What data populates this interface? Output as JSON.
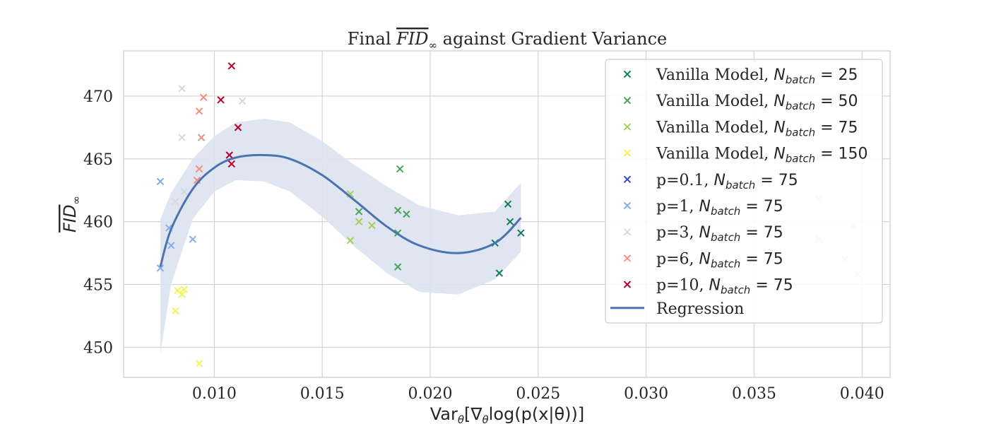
{
  "chart_data": {
    "type": "scatter",
    "title": {
      "prefix": "Final ",
      "symbol": "FID",
      "subscript": "∞",
      "suffix": " against Gradient Variance"
    },
    "xlabel": {
      "prefix": "Var",
      "sub1": "θ",
      "mid": "[∇",
      "sub2": "θ",
      "suffix": "log(p(x|θ))]"
    },
    "ylabel": {
      "symbol": "FID",
      "subscript": "∞"
    },
    "xlim": [
      0.0058,
      0.0413
    ],
    "ylim": [
      447.6,
      473.6
    ],
    "xticks": [
      "0.010",
      "0.015",
      "0.020",
      "0.025",
      "0.030",
      "0.035",
      "0.040"
    ],
    "yticks": [
      "450",
      "455",
      "460",
      "465",
      "470"
    ],
    "grid": true,
    "legend_position": "upper right",
    "series": [
      {
        "prefix": "Vanilla Model, ",
        "nbatch": "25",
        "color": "#0f7e5c",
        "points": [
          [
            0.0236,
            461.4
          ],
          [
            0.0237,
            460.0
          ],
          [
            0.0242,
            459.1
          ],
          [
            0.023,
            458.3
          ],
          [
            0.0232,
            455.9
          ]
        ]
      },
      {
        "prefix": "Vanilla Model, ",
        "nbatch": "50",
        "color": "#49a45a",
        "points": [
          [
            0.0186,
            464.2
          ],
          [
            0.0185,
            460.9
          ],
          [
            0.0189,
            460.6
          ],
          [
            0.0185,
            459.1
          ],
          [
            0.0185,
            456.4
          ],
          [
            0.0167,
            460.8
          ]
        ]
      },
      {
        "prefix": "Vanilla Model, ",
        "nbatch": "75",
        "color": "#a4d05c",
        "points": [
          [
            0.0163,
            462.2
          ],
          [
            0.0167,
            460.0
          ],
          [
            0.0173,
            459.7
          ],
          [
            0.0163,
            458.5
          ]
        ]
      },
      {
        "prefix": "Vanilla Model, ",
        "nbatch": "150",
        "color": "#f2f25a",
        "points": [
          [
            0.0083,
            454.5
          ],
          [
            0.0086,
            454.6
          ],
          [
            0.0085,
            454.2
          ],
          [
            0.0082,
            452.9
          ],
          [
            0.0093,
            448.7
          ]
        ]
      },
      {
        "prefix": "p=0.1, ",
        "nbatch": "75",
        "color": "#3349c0",
        "points": []
      },
      {
        "prefix": "p=1, ",
        "nbatch": "75",
        "color": "#84acec",
        "points": [
          [
            0.0075,
            463.2
          ],
          [
            0.0079,
            459.5
          ],
          [
            0.008,
            458.1
          ],
          [
            0.009,
            458.6
          ],
          [
            0.0075,
            456.3
          ]
        ]
      },
      {
        "prefix": "p=3, ",
        "nbatch": "75",
        "color": "#d8d8dc",
        "points": [
          [
            0.0085,
            470.6
          ],
          [
            0.0113,
            469.6
          ],
          [
            0.0085,
            466.7
          ],
          [
            0.0086,
            462.4
          ],
          [
            0.0082,
            461.6
          ],
          [
            0.038,
            461.8
          ],
          [
            0.0396,
            459.7
          ],
          [
            0.038,
            458.6
          ],
          [
            0.0392,
            457.0
          ],
          [
            0.0398,
            455.8
          ]
        ]
      },
      {
        "prefix": "p=6, ",
        "nbatch": "75",
        "color": "#ee917e",
        "points": [
          [
            0.0095,
            469.9
          ],
          [
            0.0093,
            468.8
          ],
          [
            0.0094,
            466.7
          ],
          [
            0.0093,
            464.2
          ],
          [
            0.0092,
            463.3
          ]
        ]
      },
      {
        "prefix": "p=10, ",
        "nbatch": "75",
        "color": "#b5002a",
        "points": [
          [
            0.0108,
            472.4
          ],
          [
            0.0103,
            469.7
          ],
          [
            0.0111,
            467.5
          ],
          [
            0.0107,
            465.3
          ],
          [
            0.0108,
            464.6
          ]
        ]
      }
    ],
    "regression": {
      "label": "Regression",
      "color": "#4c72b0",
      "band_color": "#dbe3f0",
      "x": [
        0.0075,
        0.008,
        0.009,
        0.01,
        0.011,
        0.0123,
        0.0135,
        0.015,
        0.0165,
        0.018,
        0.0195,
        0.0213,
        0.023,
        0.0242
      ],
      "y": [
        456.4,
        459.4,
        462.6,
        464.3,
        465.1,
        465.3,
        465.0,
        463.7,
        461.7,
        459.6,
        458.1,
        457.5,
        458.3,
        460.3
      ],
      "lower": [
        449.5,
        455.0,
        460.2,
        462.4,
        463.3,
        463.2,
        462.4,
        460.4,
        458.0,
        455.9,
        454.4,
        454.2,
        455.4,
        457.6
      ],
      "upper": [
        460.2,
        462.3,
        465.0,
        466.8,
        467.9,
        468.2,
        467.9,
        466.4,
        464.5,
        462.8,
        461.3,
        460.5,
        460.8,
        463.1
      ]
    }
  }
}
